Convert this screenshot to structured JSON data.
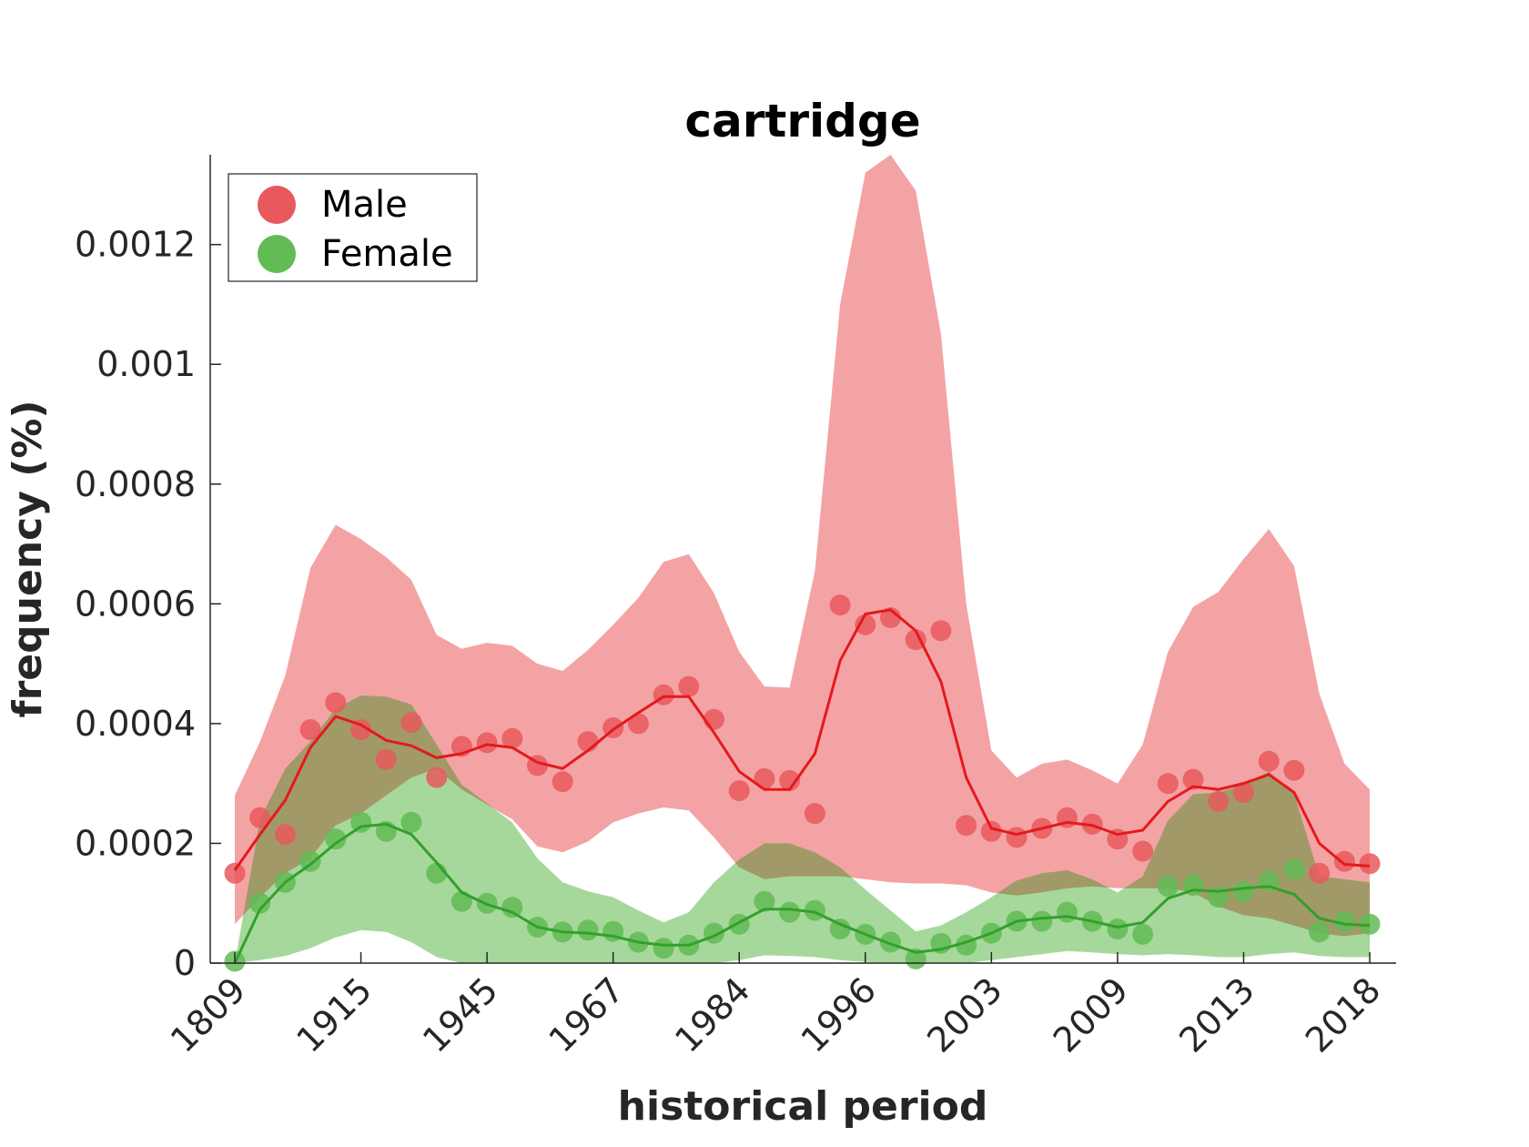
{
  "chart_data": {
    "type": "line",
    "title": "cartridge",
    "xlabel": "historical period",
    "ylabel": "frequency (%)",
    "ylim": [
      0,
      0.00135
    ],
    "y_ticks": [
      0,
      0.0002,
      0.0004,
      0.0006,
      0.0008,
      0.001,
      0.0012
    ],
    "y_tick_labels": [
      "0",
      "0.0002",
      "0.0004",
      "0.0006",
      "0.0008",
      "0.001",
      "0.0012"
    ],
    "x_count": 46,
    "x_tick_positions": [
      0,
      5,
      10,
      15,
      20,
      25,
      30,
      35,
      40,
      45
    ],
    "x_tick_labels": [
      "1809",
      "1915",
      "1945",
      "1967",
      "1984",
      "1996",
      "2003",
      "2009",
      "2013",
      "2018"
    ],
    "legend": {
      "position": "top-left",
      "entries": [
        "Male",
        "Female"
      ]
    },
    "colors": {
      "male_band": "#f4a3a5",
      "male_line": "#e31a1c",
      "male_point": "#e8595d",
      "female_band": "#a6d89b",
      "female_line": "#33a02c",
      "female_point": "#62bb55",
      "overlap_band": "#a19a68",
      "axis": "#262626"
    },
    "series": [
      {
        "name": "Male",
        "points": [
          0.00015,
          0.000243,
          0.000215,
          0.00039,
          0.000435,
          0.00039,
          0.00034,
          0.000402,
          0.00031,
          0.000362,
          0.000368,
          0.000375,
          0.00033,
          0.000303,
          0.00037,
          0.000393,
          0.0004,
          0.000448,
          0.000462,
          0.000407,
          0.000288,
          0.000308,
          0.000305,
          0.00025,
          0.000598,
          0.000565,
          0.000577,
          0.00054,
          0.000555,
          0.00023,
          0.00022,
          0.00021,
          0.000225,
          0.000243,
          0.000232,
          0.000207,
          0.000187,
          0.0003,
          0.000307,
          0.00027,
          0.000285,
          0.000337,
          0.000322,
          0.00015,
          0.00017,
          0.000166
        ],
        "smooth": [
          0.000155,
          0.000215,
          0.000272,
          0.00036,
          0.000412,
          0.000398,
          0.000372,
          0.000363,
          0.000343,
          0.00035,
          0.000365,
          0.00036,
          0.000335,
          0.000325,
          0.000355,
          0.00039,
          0.000418,
          0.000445,
          0.000445,
          0.000385,
          0.00032,
          0.00029,
          0.00029,
          0.00035,
          0.000505,
          0.000583,
          0.00059,
          0.000555,
          0.00047,
          0.00031,
          0.000225,
          0.000215,
          0.000225,
          0.000235,
          0.00023,
          0.000215,
          0.000222,
          0.00027,
          0.000295,
          0.00029,
          0.0003,
          0.000315,
          0.000285,
          0.0002,
          0.000165,
          0.000162
        ],
        "upper": [
          0.00028,
          0.00037,
          0.00048,
          0.00066,
          0.000732,
          0.000708,
          0.000678,
          0.00064,
          0.000548,
          0.000525,
          0.000535,
          0.00053,
          0.0005,
          0.000488,
          0.000523,
          0.000565,
          0.00061,
          0.00067,
          0.000683,
          0.000618,
          0.00052,
          0.000462,
          0.00046,
          0.000655,
          0.0011,
          0.00132,
          0.00135,
          0.00129,
          0.00105,
          0.0006,
          0.000355,
          0.00031,
          0.000333,
          0.00034,
          0.000322,
          0.0003,
          0.000365,
          0.00052,
          0.000595,
          0.00062,
          0.000675,
          0.000725,
          0.000663,
          0.00045,
          0.000333,
          0.00029
        ],
        "lower": [
          6.5e-05,
          0.00011,
          0.00015,
          0.000175,
          0.00023,
          0.00025,
          0.00028,
          0.00031,
          0.000325,
          0.00029,
          0.000265,
          0.00024,
          0.000195,
          0.000185,
          0.000203,
          0.000235,
          0.00025,
          0.00026,
          0.000255,
          0.00021,
          0.00016,
          0.00014,
          0.000145,
          0.000145,
          0.000145,
          0.00014,
          0.000135,
          0.000133,
          0.000133,
          0.00013,
          0.000118,
          0.000113,
          0.000118,
          0.000125,
          0.000128,
          0.000125,
          0.000125,
          0.000125,
          0.000118,
          9.5e-05,
          8e-05,
          7.5e-05,
          6.3e-05,
          5e-05,
          4.5e-05,
          5e-05
        ]
      },
      {
        "name": "Female",
        "points": [
          3e-06,
          0.0001,
          0.000135,
          0.00017,
          0.000207,
          0.000235,
          0.00022,
          0.000235,
          0.00015,
          0.000103,
          0.0001,
          9.3e-05,
          6e-05,
          5.2e-05,
          5.5e-05,
          5.3e-05,
          3.5e-05,
          2.5e-05,
          3e-05,
          5e-05,
          6.5e-05,
          0.000103,
          8.5e-05,
          8.8e-05,
          5.7e-05,
          4.8e-05,
          3.5e-05,
          7e-06,
          3.3e-05,
          3e-05,
          5e-05,
          7e-05,
          7e-05,
          8.5e-05,
          7e-05,
          5.7e-05,
          4.8e-05,
          0.000128,
          0.00013,
          0.00011,
          0.00012,
          0.000137,
          0.000157,
          5.2e-05,
          7e-05,
          6.5e-05
        ],
        "smooth": [
          0.0,
          9e-05,
          0.000135,
          0.000165,
          0.0002,
          0.000228,
          0.000232,
          0.000215,
          0.000168,
          0.000118,
          9.8e-05,
          8.5e-05,
          6e-05,
          5.2e-05,
          5e-05,
          4.5e-05,
          3.5e-05,
          3e-05,
          3e-05,
          4.5e-05,
          6.8e-05,
          9e-05,
          9e-05,
          8.5e-05,
          6.5e-05,
          4.8e-05,
          3.2e-05,
          1.8e-05,
          2.3e-05,
          3.5e-05,
          5e-05,
          7e-05,
          7.5e-05,
          7.8e-05,
          7e-05,
          6e-05,
          6.8e-05,
          0.000108,
          0.000122,
          0.00012,
          0.000125,
          0.000128,
          0.000115,
          7.5e-05,
          6.5e-05,
          6.3e-05
        ],
        "upper": [
          0.0,
          0.00024,
          0.000325,
          0.00037,
          0.000425,
          0.000447,
          0.000445,
          0.000432,
          0.000365,
          0.000298,
          0.000267,
          0.000235,
          0.000175,
          0.000135,
          0.00012,
          0.00011,
          8.8e-05,
          6.8e-05,
          8.5e-05,
          0.000135,
          0.000173,
          0.0002,
          0.0002,
          0.000185,
          0.00016,
          0.000123,
          8.8e-05,
          5.3e-05,
          6.3e-05,
          8.5e-05,
          0.00011,
          0.000138,
          0.00015,
          0.000155,
          0.00014,
          0.000118,
          0.000145,
          0.000238,
          0.000282,
          0.000285,
          0.000298,
          0.00032,
          0.000283,
          0.000145,
          0.00014,
          0.000135
        ],
        "lower": [
          0.0,
          5e-06,
          1.2e-05,
          2.5e-05,
          4.3e-05,
          5.5e-05,
          5.2e-05,
          3.5e-05,
          1e-05,
          0.0,
          0.0,
          0.0,
          0.0,
          0.0,
          0.0,
          0.0,
          0.0,
          0.0,
          0.0,
          0.0,
          5e-06,
          1.3e-05,
          1.2e-05,
          1e-05,
          5e-06,
          2e-06,
          0.0,
          0.0,
          0.0,
          0.0,
          5e-06,
          1e-05,
          1.5e-05,
          2e-05,
          1.8e-05,
          1.5e-05,
          1.3e-05,
          1.5e-05,
          1.3e-05,
          1e-05,
          1e-05,
          1.5e-05,
          1.8e-05,
          1.2e-05,
          1e-05,
          1e-05
        ]
      }
    ]
  }
}
